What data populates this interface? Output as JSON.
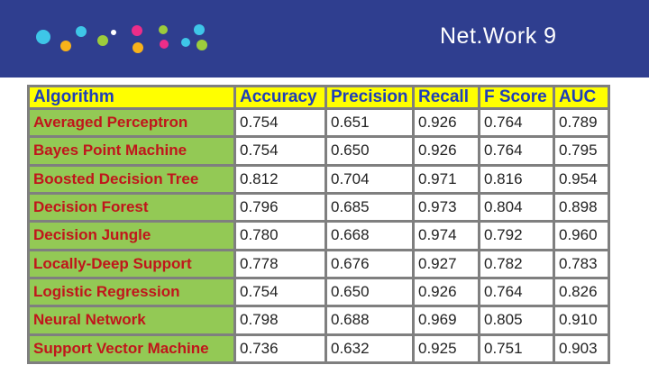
{
  "banner": {
    "title": "Net.Work 9",
    "background": "#2f3e8f",
    "dot_colors": [
      "#3ec6e8",
      "#ec2d89",
      "#9ccc3c",
      "#f8b21a",
      "#ffffff"
    ]
  },
  "table": {
    "header_background": "#ffff00",
    "header_text_color": "#1f3fb8",
    "label_background": "#93c955",
    "label_text_color": "#c0161b",
    "headers": [
      "Algorithm",
      "Accuracy",
      "Precision",
      "Recall",
      "F Score",
      "AUC"
    ],
    "rows": [
      [
        "Averaged Perceptron",
        "0.754",
        "0.651",
        "0.926",
        "0.764",
        "0.789"
      ],
      [
        "Bayes Point Machine",
        "0.754",
        "0.650",
        "0.926",
        "0.764",
        "0.795"
      ],
      [
        "Boosted Decision Tree",
        "0.812",
        "0.704",
        "0.971",
        "0.816",
        "0.954"
      ],
      [
        "Decision Forest",
        "0.796",
        "0.685",
        "0.973",
        "0.804",
        "0.898"
      ],
      [
        "Decision Jungle",
        "0.780",
        "0.668",
        "0.974",
        "0.792",
        "0.960"
      ],
      [
        "Locally-Deep Support",
        "0.778",
        "0.676",
        "0.927",
        "0.782",
        "0.783"
      ],
      [
        "Logistic Regression",
        "0.754",
        "0.650",
        "0.926",
        "0.764",
        "0.826"
      ],
      [
        "Neural Network",
        "0.798",
        "0.688",
        "0.969",
        "0.805",
        "0.910"
      ],
      [
        "Support Vector Machine",
        "0.736",
        "0.632",
        "0.925",
        "0.751",
        "0.903"
      ]
    ]
  }
}
